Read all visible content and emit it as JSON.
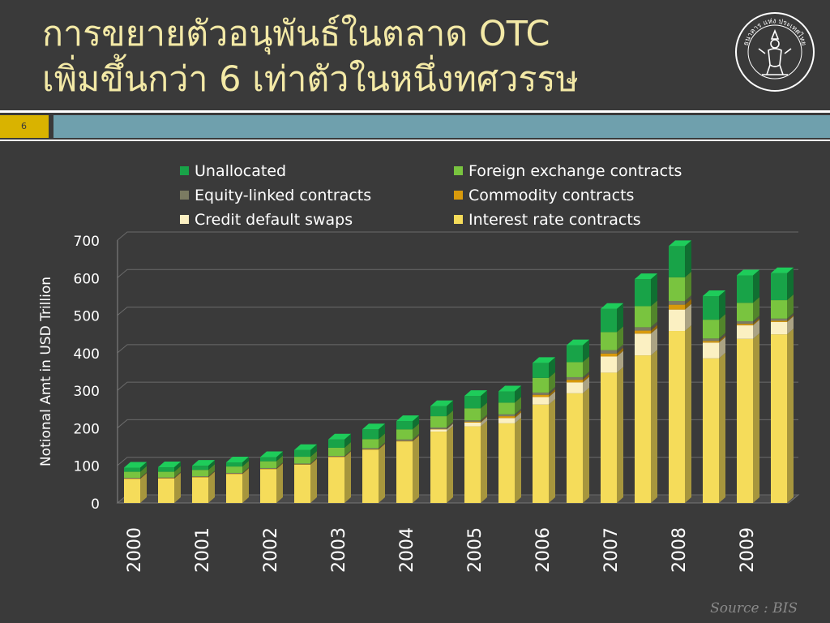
{
  "header": {
    "title_line1": "การขยายตัวอนุพันธ์ในตลาด OTC",
    "title_line2": "เพิ่มขึ้นกว่า 6 เท่าตัวในหนึ่งทศวรรษ",
    "slide_number": "6",
    "seal_text": "ธนาคาร แห่ง ประเทศไทย"
  },
  "source": "Source : BIS",
  "colors": {
    "background": "#3a3a3a",
    "title": "#f3e9a6",
    "band": "#6fa0ad",
    "slide_number_bg": "#d9b300"
  },
  "chart_data": {
    "type": "bar",
    "stacked": true,
    "three_d": true,
    "ylabel": "Notional  Amt  in USD Trillion",
    "ylim": [
      0,
      700
    ],
    "yticks": [
      0,
      100,
      200,
      300,
      400,
      500,
      600,
      700
    ],
    "x_labels": [
      "2000",
      "2001",
      "2002",
      "2003",
      "2004",
      "2005",
      "2006",
      "2007",
      "2008",
      "2009"
    ],
    "legend_position": "top",
    "categories": [
      "2000-H1",
      "2000-H2",
      "2001-H1",
      "2001-H2",
      "2002-H1",
      "2002-H2",
      "2003-H1",
      "2003-H2",
      "2004-H1",
      "2004-H2",
      "2005-H1",
      "2005-H2",
      "2006-H1",
      "2006-H2",
      "2007-H1",
      "2007-H2",
      "2008-H1",
      "2008-H2",
      "2009-H1",
      "2009-H2"
    ],
    "series": [
      {
        "name": "Interest rate contracts",
        "color": "#f5dc5a",
        "values": [
          64,
          65,
          68,
          77,
          90,
          102,
          122,
          142,
          164,
          190,
          204,
          212,
          262,
          292,
          347,
          393,
          458,
          385,
          437,
          449
        ]
      },
      {
        "name": "Credit default swaps",
        "color": "#fbf0c2",
        "values": [
          0,
          0,
          0,
          0,
          0,
          0,
          0,
          0,
          0,
          6,
          10,
          14,
          20,
          29,
          43,
          58,
          57,
          42,
          36,
          33
        ]
      },
      {
        "name": "Commodity contracts",
        "color": "#d99a0b",
        "values": [
          1,
          1,
          1,
          1,
          1,
          1,
          1,
          1,
          1,
          1,
          2,
          5,
          6,
          7,
          8,
          8,
          13,
          4,
          4,
          3
        ]
      },
      {
        "name": "Equity-linked contracts",
        "color": "#7b7b62",
        "values": [
          2,
          2,
          2,
          2,
          2,
          2,
          2,
          3,
          4,
          4,
          4,
          5,
          6,
          7,
          9,
          9,
          10,
          7,
          7,
          6
        ]
      },
      {
        "name": "Foreign exchange contracts",
        "color": "#79c43f",
        "values": [
          16,
          15,
          17,
          17,
          18,
          18,
          22,
          24,
          27,
          30,
          32,
          31,
          39,
          40,
          48,
          56,
          63,
          50,
          49,
          49
        ]
      },
      {
        "name": "Unallocated",
        "color": "#18a348",
        "values": [
          11,
          12,
          11,
          11,
          11,
          18,
          22,
          26,
          22,
          27,
          33,
          30,
          40,
          45,
          62,
          72,
          83,
          63,
          73,
          72
        ]
      }
    ],
    "legend_order": [
      "Unallocated",
      "Foreign exchange contracts",
      "Equity-linked contracts",
      "Commodity contracts",
      "Credit default swaps",
      "Interest rate contracts"
    ],
    "grid": true
  }
}
